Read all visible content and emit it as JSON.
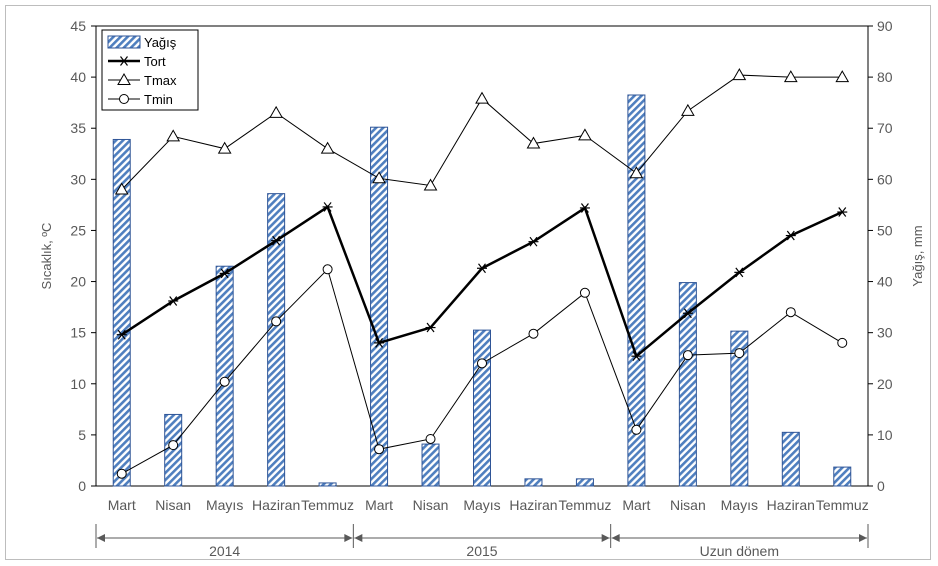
{
  "chart_data": {
    "type": "bar+line",
    "categories": [
      "Mart",
      "Nisan",
      "Mayıs",
      "Haziran",
      "Temmuz",
      "Mart",
      "Nisan",
      "Mayıs",
      "Haziran",
      "Temmuz",
      "Mart",
      "Nisan",
      "Mayıs",
      "Haziran",
      "Temmuz"
    ],
    "groups": [
      {
        "label": "2014",
        "start": 0,
        "end": 4
      },
      {
        "label": "2015",
        "start": 5,
        "end": 9
      },
      {
        "label": "Uzun dönem",
        "start": 10,
        "end": 14
      }
    ],
    "ylabel_left": "Sıcaklık, ºC",
    "ylabel_right": "Yağış, mm",
    "ylim_left": [
      0,
      45
    ],
    "yticks_left": [
      0,
      5,
      10,
      15,
      20,
      25,
      30,
      35,
      40,
      45
    ],
    "ylim_right": [
      0,
      90
    ],
    "yticks_right": [
      0,
      10,
      20,
      30,
      40,
      50,
      60,
      70,
      80,
      90
    ],
    "legend_position": "top-left",
    "series": [
      {
        "name": "Yağış",
        "kind": "bar",
        "axis": "right",
        "color": "#4472c4",
        "values": [
          67.8,
          14,
          43,
          57.2,
          0.6,
          70.2,
          8.2,
          30.5,
          1.4,
          1.4,
          76.5,
          39.8,
          30.3,
          10.5,
          3.7
        ]
      },
      {
        "name": "Tort",
        "kind": "line",
        "marker": "asterisk",
        "axis": "left",
        "color": "#000000",
        "values": [
          14.8,
          18.1,
          20.8,
          24,
          27.3,
          14,
          15.5,
          21.3,
          23.9,
          27.2,
          12.7,
          16.9,
          20.9,
          24.5,
          26.8
        ]
      },
      {
        "name": "Tmax",
        "kind": "line",
        "marker": "triangle",
        "axis": "left",
        "color": "#000000",
        "values": [
          29,
          34.2,
          33,
          36.5,
          33,
          30.1,
          29.4,
          37.9,
          33.5,
          34.3,
          30.6,
          36.7,
          40.2,
          40,
          40
        ]
      },
      {
        "name": "Tmin",
        "kind": "line",
        "marker": "circle",
        "axis": "left",
        "color": "#000000",
        "values": [
          1.2,
          4,
          10.2,
          16.1,
          21.2,
          3.6,
          4.6,
          12,
          14.9,
          18.9,
          5.5,
          12.8,
          13,
          17,
          14
        ]
      }
    ]
  }
}
